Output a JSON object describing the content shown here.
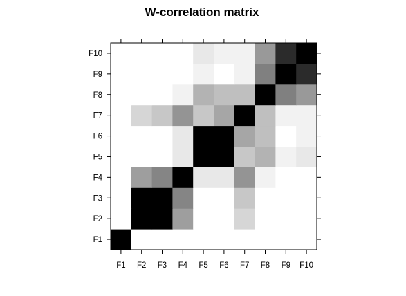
{
  "chart_data": {
    "type": "heatmap",
    "title": "W-correlation matrix",
    "xlabel": "",
    "ylabel": "",
    "x_labels": [
      "F1",
      "F2",
      "F3",
      "F4",
      "F5",
      "F6",
      "F7",
      "F8",
      "F9",
      "F10"
    ],
    "y_labels": [
      "F1",
      "F2",
      "F3",
      "F4",
      "F5",
      "F6",
      "F7",
      "F8",
      "F9",
      "F10"
    ],
    "value_range": [
      0,
      1
    ],
    "color_scale": "white-to-black",
    "grid": false,
    "legend": "none",
    "matrix": [
      [
        1.0,
        0.0,
        0.0,
        0.0,
        0.0,
        0.0,
        0.0,
        0.0,
        0.0,
        0.0
      ],
      [
        0.0,
        1.0,
        1.0,
        0.38,
        0.0,
        0.0,
        0.16,
        0.0,
        0.0,
        0.0
      ],
      [
        0.0,
        1.0,
        1.0,
        0.48,
        0.0,
        0.0,
        0.22,
        0.0,
        0.0,
        0.0
      ],
      [
        0.0,
        0.38,
        0.48,
        1.0,
        0.09,
        0.09,
        0.42,
        0.05,
        0.0,
        0.0
      ],
      [
        0.0,
        0.0,
        0.0,
        0.09,
        1.0,
        1.0,
        0.22,
        0.3,
        0.05,
        0.09
      ],
      [
        0.0,
        0.0,
        0.0,
        0.09,
        1.0,
        1.0,
        0.35,
        0.25,
        0.0,
        0.05
      ],
      [
        0.0,
        0.16,
        0.22,
        0.42,
        0.22,
        0.35,
        1.0,
        0.25,
        0.05,
        0.05
      ],
      [
        0.0,
        0.0,
        0.0,
        0.05,
        0.3,
        0.25,
        0.25,
        1.0,
        0.5,
        0.4
      ],
      [
        0.0,
        0.0,
        0.0,
        0.0,
        0.05,
        0.0,
        0.05,
        0.5,
        1.0,
        0.83
      ],
      [
        0.0,
        0.0,
        0.0,
        0.0,
        0.09,
        0.05,
        0.05,
        0.4,
        0.83,
        1.0
      ]
    ]
  }
}
